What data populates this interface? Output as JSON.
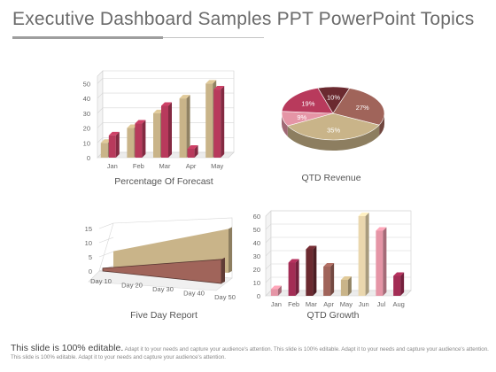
{
  "title": "Executive Dashboard Samples PPT PowerPoint Topics",
  "footer": {
    "lead": "This slide is 100% editable.",
    "body": "Adapt it to your needs and capture your audience's attention. This slide is 100% editable. Adapt it to your needs and capture your audience's attention. This slide is 100% editable. Adapt it to your needs and capture your audience's attention."
  },
  "colors": {
    "tan": "#c9b489",
    "crimson": "#b83a5c",
    "brown": "#a0645a",
    "dark_brown": "#6b2a30",
    "pink": "#e595a6",
    "cream": "#ead7ae",
    "magenta": "#a32d55"
  },
  "chart_data": [
    {
      "type": "bar",
      "caption": "Percentage Of Forecast",
      "categories": [
        "Jan",
        "Feb",
        "Mar",
        "Apr",
        "May"
      ],
      "series": [
        {
          "values": [
            10,
            20,
            30,
            40,
            50
          ],
          "color": "#c9b489"
        },
        {
          "values": [
            15,
            23,
            35,
            6,
            46
          ],
          "color": "#b83a5c"
        }
      ],
      "yticks": [
        "0",
        "10",
        "20",
        "30",
        "40",
        "50"
      ],
      "ylim": [
        0,
        55
      ]
    },
    {
      "type": "pie",
      "caption": "QTD Revenue",
      "slices": [
        {
          "label": "10%",
          "value": 10,
          "color": "#6b2a30"
        },
        {
          "label": "27%",
          "value": 27,
          "color": "#a0645a"
        },
        {
          "label": "35%",
          "value": 35,
          "color": "#c9b489"
        },
        {
          "label": "9%",
          "value": 9,
          "color": "#e595a6"
        },
        {
          "label": "19%",
          "value": 19,
          "color": "#b83a5c"
        }
      ]
    },
    {
      "type": "area",
      "caption": "Five Day Report",
      "categories": [
        "Day 10",
        "Day 20",
        "Day 30",
        "Day 40",
        "Day 50"
      ],
      "series": [
        {
          "start": 7,
          "end": 13,
          "color": "#c9b489"
        },
        {
          "start": 1,
          "end": 6,
          "color": "#a0645a"
        }
      ],
      "yticks": [
        "0",
        "5",
        "10",
        "15"
      ],
      "ylim": [
        0,
        15
      ]
    },
    {
      "type": "bar",
      "caption": "QTD Growth",
      "categories": [
        "Jan",
        "Feb",
        "Mar",
        "Apr",
        "May",
        "Jun",
        "Jul",
        "Aug"
      ],
      "series": [
        {
          "values": [
            5,
            25,
            35,
            22,
            12,
            60,
            49,
            15
          ],
          "colors": [
            "#e595a6",
            "#a32d55",
            "#6b2a30",
            "#a0645a",
            "#c9b489",
            "#ead7ae",
            "#e595a6",
            "#a32d55"
          ]
        }
      ],
      "yticks": [
        "0",
        "10",
        "20",
        "30",
        "40",
        "50",
        "60"
      ],
      "ylim": [
        0,
        60
      ]
    }
  ]
}
